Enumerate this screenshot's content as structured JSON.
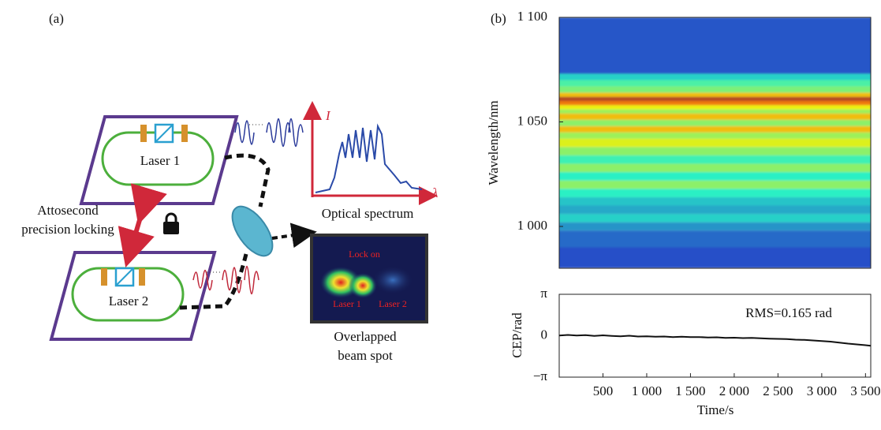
{
  "panel_a": {
    "label": "(a)",
    "laser_1": "Laser 1",
    "laser_2": "Laser 2",
    "locking_label": [
      "Attosecond",
      "precision locking"
    ],
    "spectrum": {
      "y_axis": "I",
      "x_axis": "λ",
      "caption": "Optical spectrum"
    },
    "beam_spot": {
      "lock_text": "Lock on",
      "spot_1": "Laser 1",
      "spot_2": "Laser 2",
      "caption": [
        "Overlapped",
        "beam spot"
      ]
    }
  },
  "chart_data": [
    {
      "type": "heatmap",
      "panel_label": "(b)",
      "y_label": "Wavelength/nm",
      "colormap": "jet",
      "ylim": [
        980,
        1100
      ],
      "yticks": [
        {
          "value": 1000,
          "label": "1 000"
        },
        {
          "value": 1050,
          "label": "1 050"
        },
        {
          "value": 1100,
          "label": "1 100"
        }
      ],
      "bins": [
        980,
        990,
        998,
        1002,
        1006,
        1010,
        1014,
        1018,
        1022,
        1026,
        1030,
        1034,
        1038,
        1042,
        1045,
        1048,
        1051,
        1054,
        1056,
        1058,
        1060,
        1062,
        1064,
        1067,
        1070,
        1073,
        1100
      ],
      "intensity": [
        0.14,
        0.18,
        0.24,
        0.33,
        0.27,
        0.31,
        0.38,
        0.5,
        0.38,
        0.5,
        0.4,
        0.5,
        0.6,
        0.52,
        0.7,
        0.5,
        0.7,
        0.52,
        0.62,
        0.8,
        0.95,
        0.7,
        0.48,
        0.42,
        0.33,
        0.15
      ]
    },
    {
      "type": "line",
      "y_label": "CEP/rad",
      "x_label": "Time/s",
      "annotation": "RMS=0.165 rad",
      "color": "#111111",
      "xlim": [
        0,
        3560
      ],
      "ylim": [
        -3.14159,
        3.14159
      ],
      "yticks": [
        {
          "value": -3.14159,
          "label": "−π"
        },
        0,
        {
          "value": 3.14159,
          "label": "π"
        }
      ],
      "xticks": [
        500,
        {
          "value": 1000,
          "label": "1 000"
        },
        {
          "value": 1500,
          "label": "1 500"
        },
        {
          "value": 2000,
          "label": "2 000"
        },
        {
          "value": 2500,
          "label": "2 500"
        },
        {
          "value": 3000,
          "label": "3 000"
        },
        {
          "value": 3500,
          "label": "3 500"
        }
      ],
      "x": [
        0,
        100,
        200,
        300,
        400,
        500,
        600,
        700,
        800,
        900,
        1000,
        1100,
        1200,
        1300,
        1400,
        1500,
        1600,
        1700,
        1800,
        1900,
        2000,
        2100,
        2200,
        2300,
        2400,
        2500,
        2600,
        2700,
        2800,
        2900,
        3000,
        3100,
        3200,
        3300,
        3400,
        3500,
        3560
      ],
      "values": [
        0.02,
        0.06,
        0.01,
        0.04,
        -0.02,
        0.03,
        -0.01,
        -0.04,
        0.0,
        -0.06,
        -0.05,
        -0.08,
        -0.06,
        -0.1,
        -0.08,
        -0.11,
        -0.1,
        -0.13,
        -0.12,
        -0.16,
        -0.15,
        -0.18,
        -0.17,
        -0.2,
        -0.22,
        -0.24,
        -0.26,
        -0.3,
        -0.32,
        -0.36,
        -0.4,
        -0.45,
        -0.52,
        -0.6,
        -0.66,
        -0.72,
        -0.76
      ]
    }
  ]
}
